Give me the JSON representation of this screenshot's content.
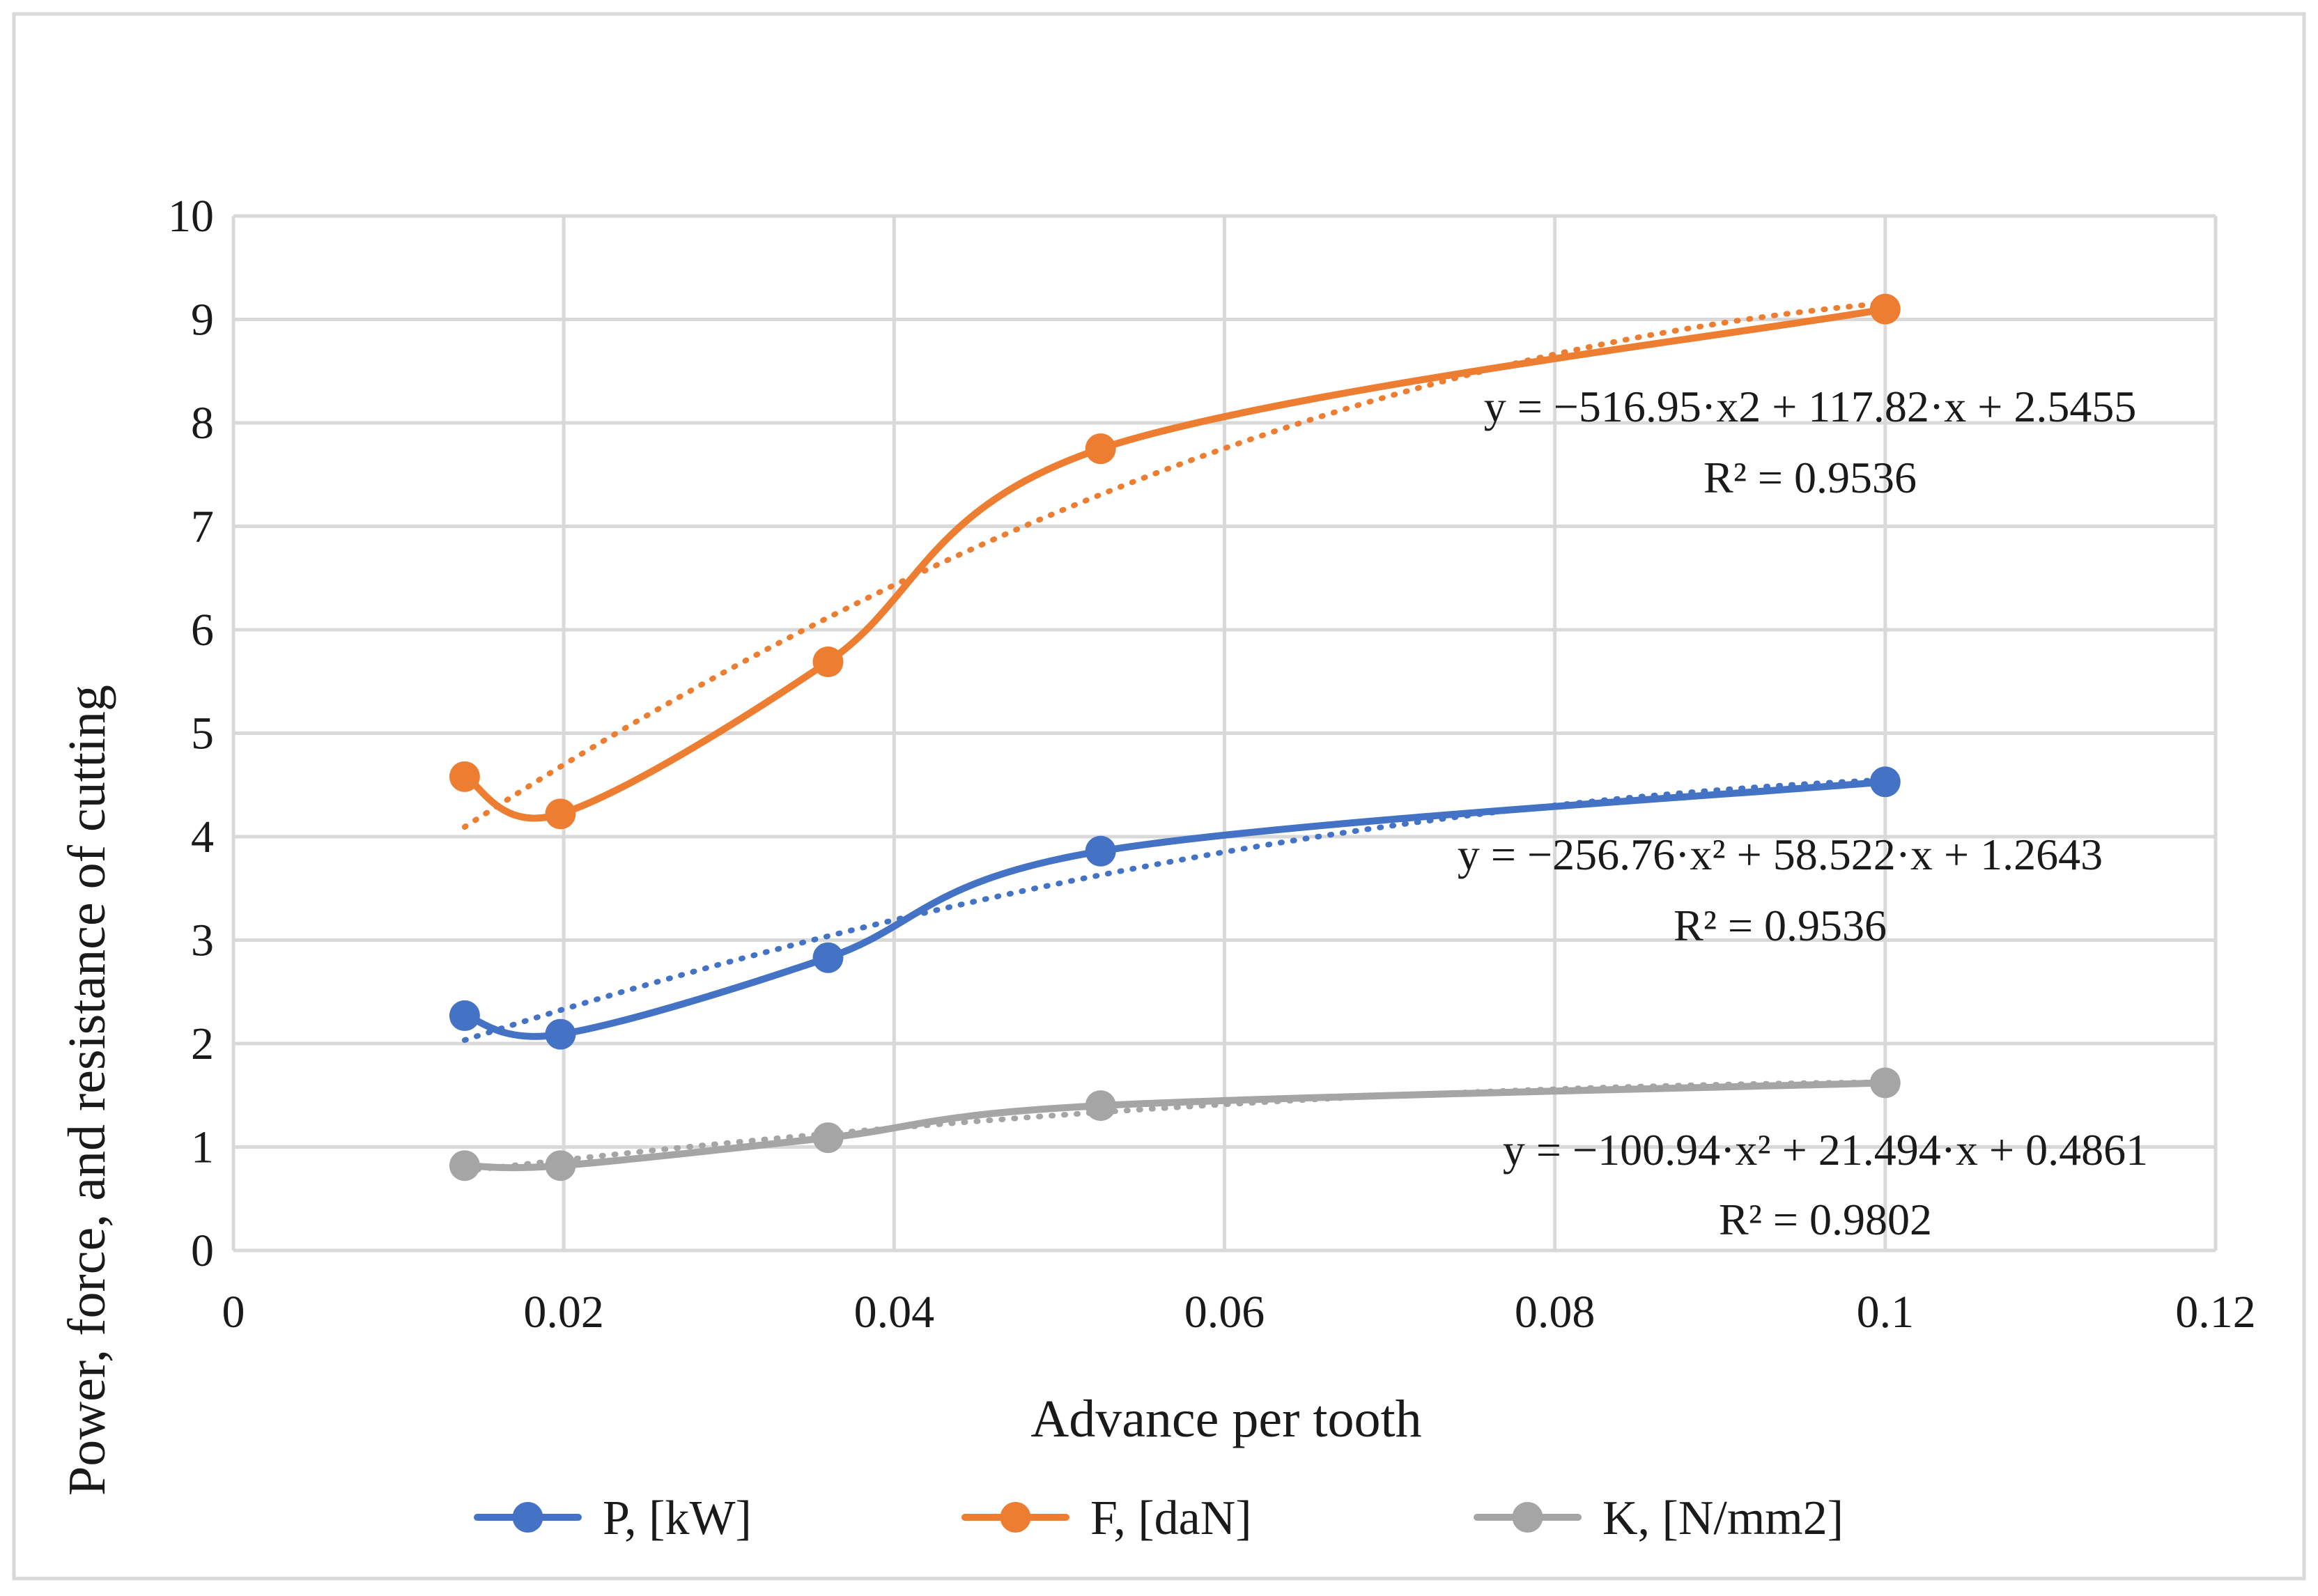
{
  "chart_data": {
    "type": "line",
    "title": "",
    "xlabel": "Advance per tooth",
    "ylabel": "Power, force, and resistance of cutting",
    "xlim": [
      0,
      0.12
    ],
    "ylim": [
      0,
      10
    ],
    "xticks": [
      0,
      0.02,
      0.04,
      0.06,
      0.08,
      0.1,
      0.12
    ],
    "yticks": [
      0,
      1,
      2,
      3,
      4,
      5,
      6,
      7,
      8,
      9,
      10
    ],
    "xtick_labels": [
      "0",
      "0.02",
      "0.04",
      "0.06",
      "0.08",
      "0.1",
      "0.12"
    ],
    "ytick_labels": [
      "0",
      "1",
      "2",
      "3",
      "4",
      "5",
      "6",
      "7",
      "8",
      "9",
      "10"
    ],
    "grid": true,
    "legend_position": "bottom",
    "x": [
      0.014,
      0.0198,
      0.036,
      0.0525,
      0.1
    ],
    "series": [
      {
        "name": "P, [kW]",
        "color": "#4472C4",
        "values": [
          2.27,
          2.09,
          2.83,
          3.86,
          4.53
        ],
        "trendline": {
          "type": "polynomial-2",
          "a": -256.76,
          "b": 58.522,
          "c": 1.2643
        },
        "equation": "y = −256.76·x² + 58.522·x + 1.2643",
        "r2": "R² = 0.9536"
      },
      {
        "name": "F, [daN]",
        "color": "#ED7D31",
        "values": [
          4.58,
          4.22,
          5.69,
          7.75,
          9.1
        ],
        "trendline": {
          "type": "polynomial-2",
          "a": -516.95,
          "b": 117.82,
          "c": 2.5455
        },
        "equation": "y = −516.95·x2 + 117.82·x + 2.5455",
        "r2": "R² = 0.9536"
      },
      {
        "name": "K, [N/mm2]",
        "color": "#A5A5A5",
        "values": [
          0.82,
          0.82,
          1.09,
          1.4,
          1.62
        ],
        "trendline": {
          "type": "polynomial-2",
          "a": -100.94,
          "b": 21.494,
          "c": 0.4861
        },
        "equation": "y = −100.94·x² + 21.494·x + 0.4861",
        "r2": "R² = 0.9802"
      }
    ]
  }
}
